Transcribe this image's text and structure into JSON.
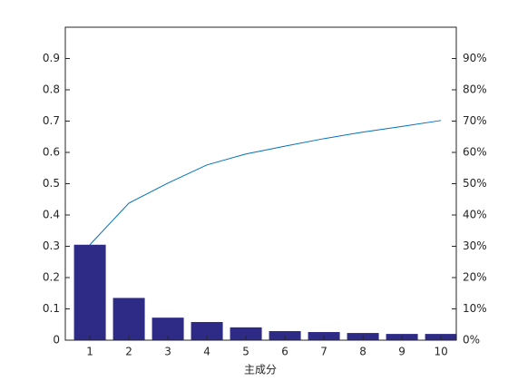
{
  "chart_data": {
    "type": "pareto",
    "xlabel": "主成分",
    "categories": [
      "1",
      "2",
      "3",
      "4",
      "5",
      "6",
      "7",
      "8",
      "9",
      "10"
    ],
    "series": [
      {
        "type": "bar",
        "color": "#2e2b87",
        "values": [
          0.305,
          0.135,
          0.072,
          0.058,
          0.041,
          0.029,
          0.026,
          0.023,
          0.02,
          0.02
        ]
      },
      {
        "type": "line",
        "axis": "y2",
        "color": "#0072bd",
        "values": [
          30.5,
          43.8,
          50.2,
          56,
          59.5,
          62,
          64.4,
          66.5,
          68.3,
          70.2
        ]
      }
    ],
    "ylim": [
      0,
      1.0
    ],
    "yticks": [
      0,
      0.1,
      0.2,
      0.3,
      0.4,
      0.5,
      0.6,
      0.7,
      0.8,
      0.9
    ],
    "y2lim": [
      0,
      100
    ],
    "y2ticks": [
      {
        "value": 0,
        "label": "0%"
      },
      {
        "value": 10,
        "label": "10%"
      },
      {
        "value": 20,
        "label": "20%"
      },
      {
        "value": 30,
        "label": "30%"
      },
      {
        "value": 40,
        "label": "40%"
      },
      {
        "value": 50,
        "label": "50%"
      },
      {
        "value": 60,
        "label": "60%"
      },
      {
        "value": 70,
        "label": "70%"
      },
      {
        "value": 80,
        "label": "80%"
      },
      {
        "value": 90,
        "label": "90%"
      }
    ]
  }
}
